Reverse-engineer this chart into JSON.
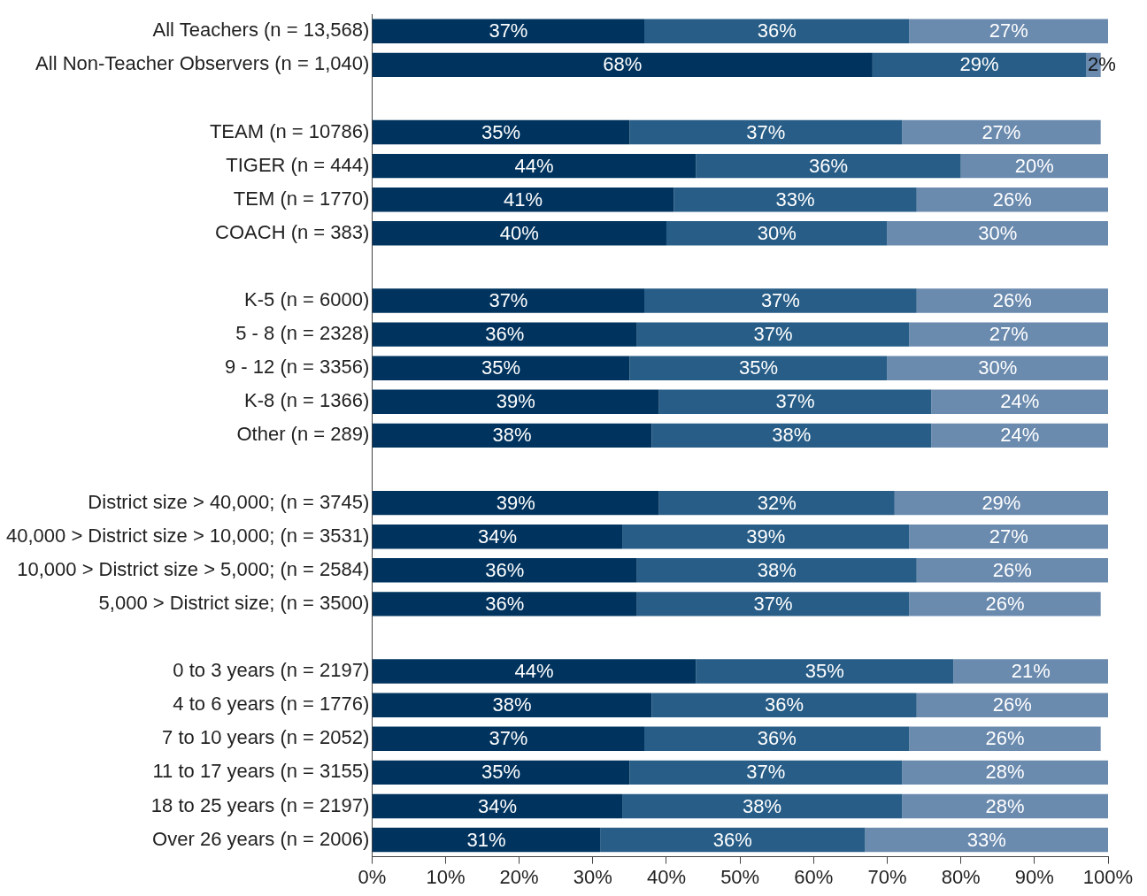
{
  "chart_data": {
    "type": "bar",
    "orientation": "horizontal",
    "stacked": true,
    "grid": false,
    "legend": false,
    "categories": [
      "All Teachers (n = 13,568)",
      "All Non-Teacher Observers (n = 1,040)",
      null,
      "TEAM (n = 10786)",
      "TIGER (n = 444)",
      "TEM (n = 1770)",
      "COACH (n = 383)",
      null,
      "K-5 (n = 6000)",
      "5 - 8 (n = 2328)",
      "9 - 12 (n = 3356)",
      "K-8 (n = 1366)",
      "Other (n = 289)",
      null,
      "District size > 40,000; (n = 3745)",
      "40,000 > District size > 10,000; (n = 3531)",
      "10,000 > District size > 5,000; (n = 2584)",
      "5,000 > District size; (n = 3500)",
      null,
      "0 to 3 years (n = 2197)",
      "4 to 6 years (n = 1776)",
      "7 to 10 years (n = 2052)",
      "11 to 17 years (n = 3155)",
      "18 to 25 years (n = 2197)",
      "Over 26 years (n = 2006)"
    ],
    "series": [
      {
        "color": "#00345f",
        "values": [
          37,
          68,
          null,
          35,
          44,
          41,
          40,
          null,
          37,
          36,
          35,
          39,
          38,
          null,
          39,
          34,
          36,
          36,
          null,
          44,
          38,
          37,
          35,
          34,
          31
        ],
        "value_labels": [
          "37%",
          "68%",
          null,
          "35%",
          "44%",
          "41%",
          "40%",
          null,
          "37%",
          "36%",
          "35%",
          "39%",
          "38%",
          null,
          "39%",
          "34%",
          "36%",
          "36%",
          null,
          "44%",
          "38%",
          "37%",
          "35%",
          "34%",
          "31%"
        ]
      },
      {
        "color": "#275d87",
        "values": [
          36,
          29,
          null,
          37,
          36,
          33,
          30,
          null,
          37,
          37,
          35,
          37,
          38,
          null,
          32,
          39,
          38,
          37,
          null,
          35,
          36,
          36,
          37,
          38,
          36
        ],
        "value_labels": [
          "36%",
          "29%",
          null,
          "37%",
          "36%",
          "33%",
          "30%",
          null,
          "37%",
          "37%",
          "35%",
          "37%",
          "38%",
          null,
          "32%",
          "39%",
          "38%",
          "37%",
          null,
          "35%",
          "36%",
          "36%",
          "37%",
          "38%",
          "36%"
        ]
      },
      {
        "color": "#6a8aae",
        "values": [
          27,
          2,
          null,
          27,
          20,
          26,
          30,
          null,
          26,
          27,
          30,
          24,
          24,
          null,
          29,
          27,
          26,
          26,
          null,
          21,
          26,
          26,
          28,
          28,
          33
        ],
        "value_labels": [
          "27%",
          "2%",
          null,
          "27%",
          "20%",
          "26%",
          "30%",
          null,
          "26%",
          "27%",
          "30%",
          "24%",
          "24%",
          null,
          "29%",
          "27%",
          "26%",
          "26%",
          null,
          "21%",
          "26%",
          "26%",
          "28%",
          "28%",
          "33%"
        ]
      }
    ],
    "xlim": [
      0,
      100
    ],
    "xticks": [
      {
        "value": 0,
        "label": "0%"
      },
      {
        "value": 10,
        "label": "10%"
      },
      {
        "value": 20,
        "label": "20%"
      },
      {
        "value": 30,
        "label": "30%"
      },
      {
        "value": 40,
        "label": "40%"
      },
      {
        "value": 50,
        "label": "50%"
      },
      {
        "value": 60,
        "label": "60%"
      },
      {
        "value": 70,
        "label": "70%"
      },
      {
        "value": 80,
        "label": "80%"
      },
      {
        "value": 90,
        "label": "90%"
      },
      {
        "value": 100,
        "label": "100%"
      }
    ]
  }
}
